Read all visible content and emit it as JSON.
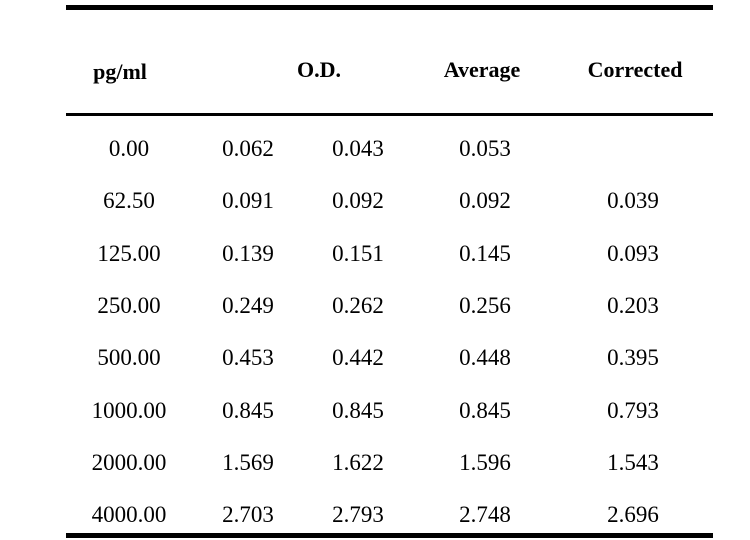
{
  "table": {
    "headers": {
      "concentration": "pg/ml",
      "od": "O.D.",
      "average": "Average",
      "corrected": "Corrected"
    },
    "rows": [
      {
        "conc": "0.00",
        "od1": "0.062",
        "od2": "0.043",
        "avg": "0.053",
        "corr": ""
      },
      {
        "conc": "62.50",
        "od1": "0.091",
        "od2": "0.092",
        "avg": "0.092",
        "corr": "0.039"
      },
      {
        "conc": "125.00",
        "od1": "0.139",
        "od2": "0.151",
        "avg": "0.145",
        "corr": "0.093"
      },
      {
        "conc": "250.00",
        "od1": "0.249",
        "od2": "0.262",
        "avg": "0.256",
        "corr": "0.203"
      },
      {
        "conc": "500.00",
        "od1": "0.453",
        "od2": "0.442",
        "avg": "0.448",
        "corr": "0.395"
      },
      {
        "conc": "1000.00",
        "od1": "0.845",
        "od2": "0.845",
        "avg": "0.845",
        "corr": "0.793"
      },
      {
        "conc": "2000.00",
        "od1": "1.569",
        "od2": "1.622",
        "avg": "1.596",
        "corr": "1.543"
      },
      {
        "conc": "4000.00",
        "od1": "2.703",
        "od2": "2.793",
        "avg": "2.748",
        "corr": "2.696"
      }
    ]
  }
}
